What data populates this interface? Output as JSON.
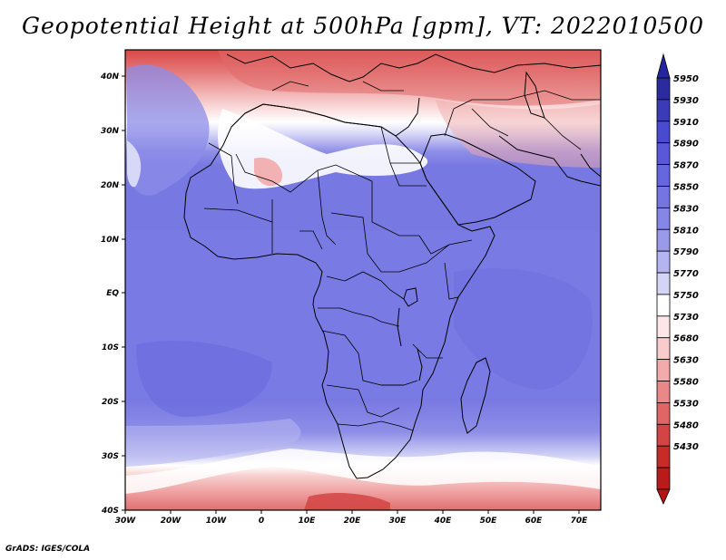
{
  "title": "Geopotential Height at 500hPa [gpm], VT: 2022010500",
  "credit": "GrADS: IGES/COLA",
  "map": {
    "region": "Africa",
    "lon_range": [
      -30,
      75
    ],
    "lat_range": [
      -40,
      45
    ],
    "lon_labels": [
      "30W",
      "20W",
      "10W",
      "0",
      "10E",
      "20E",
      "30E",
      "40E",
      "50E",
      "60E",
      "70E"
    ],
    "lat_labels": [
      "40N",
      "30N",
      "20N",
      "10N",
      "EQ",
      "10S",
      "20S",
      "30S",
      "40S"
    ],
    "field": "500hPa geopotential height",
    "units": "gpm"
  },
  "colorbar": {
    "levels": [
      5950,
      5930,
      5910,
      5890,
      5870,
      5850,
      5830,
      5810,
      5790,
      5770,
      5750,
      5730,
      5680,
      5630,
      5580,
      5530,
      5480,
      5430
    ],
    "colors": [
      "#2b2b9e",
      "#3b3bb8",
      "#4a4ad0",
      "#5858d8",
      "#6666de",
      "#7575e2",
      "#8686e6",
      "#9a9aea",
      "#b4b4f0",
      "#d4d4f6",
      "#ffffff",
      "#fde6e6",
      "#f8cccc",
      "#f2aaaa",
      "#ea8888",
      "#e06666",
      "#d44444",
      "#c82a2a",
      "#bb1a1a"
    ]
  }
}
